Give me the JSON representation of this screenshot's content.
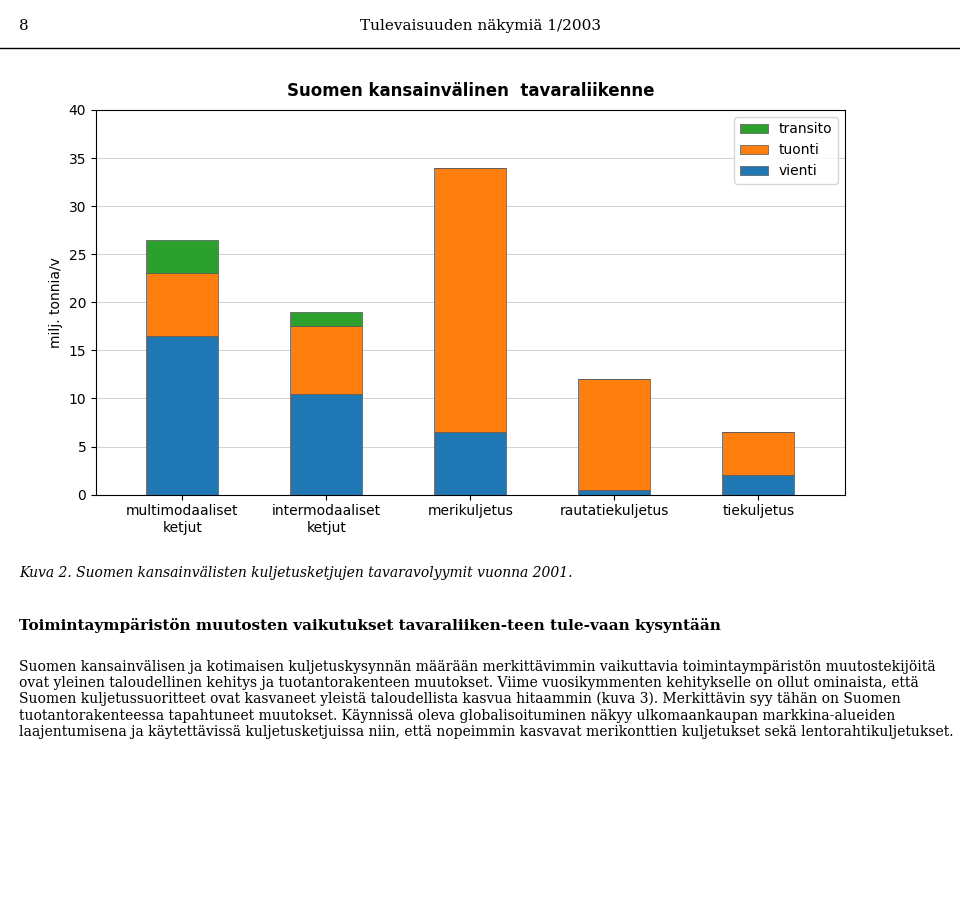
{
  "chart_data": {
    "type": "bar",
    "stacked": true,
    "title": "Suomen kansainvälinen  tavaraliikenne",
    "ylabel": "milj. tonnia/v",
    "categories": [
      "multimodaaliset\nketjut",
      "intermodaaliset\nketjut",
      "merikuljetus",
      "rautatiekuljetus",
      "tiekuljetus"
    ],
    "series": [
      {
        "name": "vienti",
        "values": [
          16.5,
          10.5,
          6.5,
          0.5,
          2.0
        ]
      },
      {
        "name": "tuonti",
        "values": [
          6.5,
          7.0,
          27.5,
          11.5,
          4.5
        ]
      },
      {
        "name": "transito",
        "values": [
          3.5,
          1.5,
          0.0,
          0.0,
          0.0
        ]
      }
    ],
    "ylim": [
      0,
      40
    ],
    "yticks": [
      0,
      5,
      10,
      15,
      20,
      25,
      30,
      35,
      40
    ],
    "grid": true,
    "legend": "upper right",
    "annotations": [
      "8",
      "Tulevaisuuden näkymiä 1/2003",
      "Kuva 2. Suomen kansainvälisten kuljetusketjujen tavaravolyymit vuonna 2001.",
      "Toimintaympäristön muutosten vaikutukset tavaraliiken­teen tule­vaan kysyntään",
      "Suomen kansainvälisen ja kotimaisen kuljetuskysynnän määrään merkittävimmin vaikuttavia toimintaympäristön muutostekijöitä ovat yleinen taloudellinen kehitys ja tuotantorakenteen muutokset. Viime vuosikymmenten kehitykselle on ollut ominaista, että Suomen kuljetussuoritteet ovat kasvaneet yleistä taloudellista kasvua hitaammin (kuva 3). Merkittävin syy tähän on Suomen tuotantorakenteessa tapahtuneet muutokset. Käynnissä oleva globalisoituminen näkyy ulkomaankaupan markkina-alueiden laajentumisena ja käytettävissä kuljetusketjuissa niin, että nopeimmin kasvavat merikonttien kuljetukset sekä lentorahtikuljetukset."
    ]
  }
}
